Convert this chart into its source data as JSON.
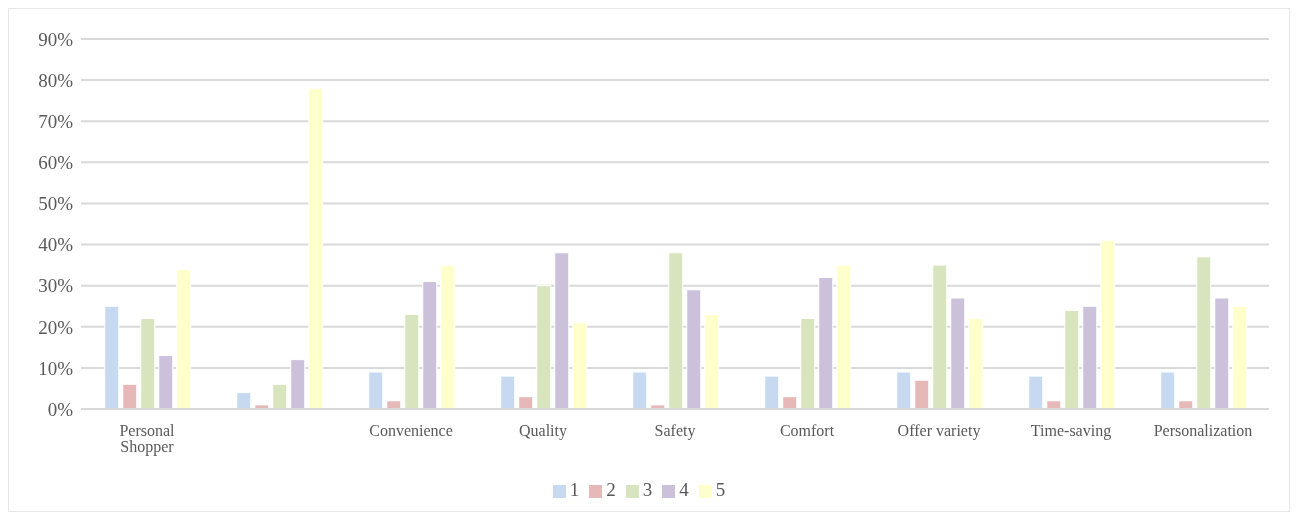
{
  "chart_data": {
    "type": "bar",
    "categories": [
      "Personal Shopper",
      null,
      "Convenience",
      "Quality",
      "Safety",
      "Comfort",
      "Offer variety",
      "Time-saving",
      "Personalization"
    ],
    "series": [
      {
        "name": "1",
        "color": "#c6d9f1",
        "values": [
          25,
          4,
          9,
          8,
          9,
          8,
          9,
          8,
          9
        ]
      },
      {
        "name": "2",
        "color": "#e6b9b8",
        "values": [
          6,
          1,
          2,
          3,
          1,
          3,
          7,
          2,
          2
        ]
      },
      {
        "name": "3",
        "color": "#d7e4bd",
        "values": [
          22,
          6,
          23,
          30,
          38,
          22,
          35,
          24,
          37
        ]
      },
      {
        "name": "4",
        "color": "#ccc1da",
        "values": [
          13,
          12,
          31,
          38,
          29,
          32,
          27,
          25,
          27
        ]
      },
      {
        "name": "5",
        "color": "#ffffcc",
        "values": [
          34,
          78,
          35,
          21,
          23,
          35,
          22,
          41,
          25
        ]
      }
    ],
    "ylim": [
      0,
      90
    ],
    "yticks": [
      {
        "value": 0,
        "label": "0%"
      },
      {
        "value": 10,
        "label": "10%"
      },
      {
        "value": 20,
        "label": "20%"
      },
      {
        "value": 30,
        "label": "30%"
      },
      {
        "value": 40,
        "label": "40%"
      },
      {
        "value": 50,
        "label": "50%"
      },
      {
        "value": 60,
        "label": "60%"
      },
      {
        "value": 70,
        "label": "70%"
      },
      {
        "value": 80,
        "label": "80%"
      },
      {
        "value": 90,
        "label": "90%"
      }
    ],
    "grid": "y",
    "legend": "bottom"
  }
}
